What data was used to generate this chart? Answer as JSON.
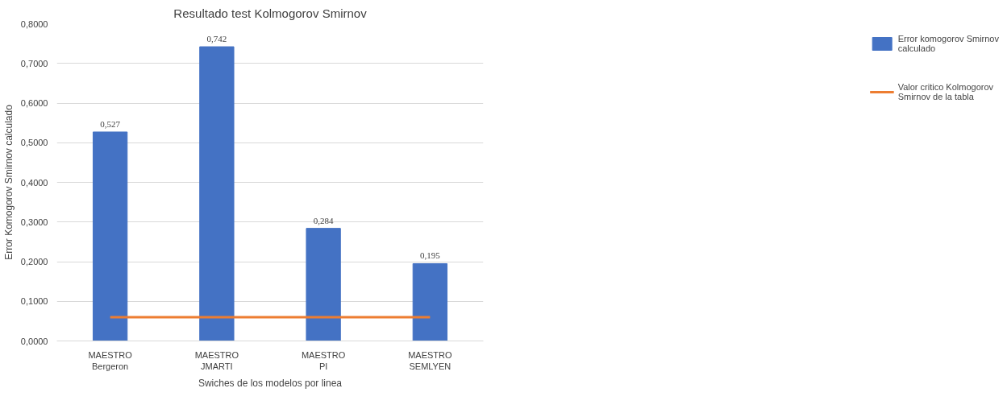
{
  "chart_data": {
    "type": "bar",
    "title": "Resultado test Kolmogorov Smirnov",
    "xlabel": "Swiches de los modelos por linea",
    "ylabel": "Error Komogorov Smirnov calculado",
    "categories": [
      "MAESTRO\nBergeron",
      "MAESTRO\nJMARTI",
      "MAESTRO\nPI",
      "MAESTRO\nSEMLYEN"
    ],
    "series": [
      {
        "name": "Error komogorov Smirnov calculado",
        "color": "#4472c4",
        "values": [
          0.527,
          0.742,
          0.284,
          0.195
        ],
        "value_labels": [
          "0,527",
          "0,742",
          "0,284",
          "0,195"
        ]
      },
      {
        "name": "Valor critico Kolmogorov Smirnov de la tabla",
        "type": "line",
        "color": "#ed7d31",
        "values": [
          0.06,
          0.06,
          0.06,
          0.06
        ]
      }
    ],
    "ylim": [
      0,
      0.8
    ],
    "yticks": [
      {
        "value": 0,
        "label": "0,0000"
      },
      {
        "value": 0.1,
        "label": "0,1000"
      },
      {
        "value": 0.2,
        "label": "0,2000"
      },
      {
        "value": 0.3,
        "label": "0,3000"
      },
      {
        "value": 0.4,
        "label": "0,4000"
      },
      {
        "value": 0.5,
        "label": "0,5000"
      },
      {
        "value": 0.6,
        "label": "0,6000"
      },
      {
        "value": 0.7,
        "label": "0,7000"
      },
      {
        "value": 0.8,
        "label": "0,8000"
      }
    ],
    "grid": "y",
    "legend": "right",
    "marker": "none",
    "line_style": "solid"
  }
}
